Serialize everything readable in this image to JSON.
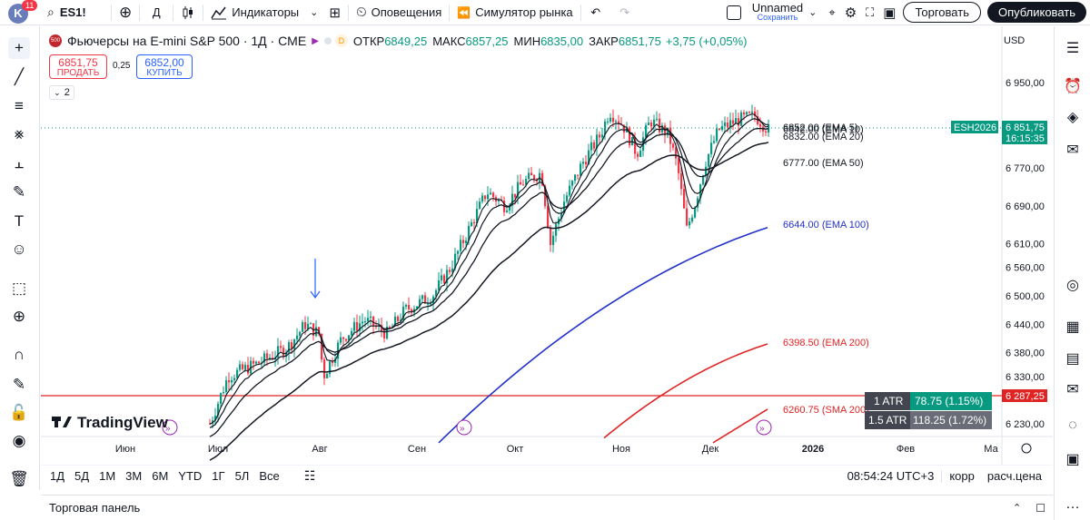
{
  "topbar": {
    "avatar_letter": "K",
    "notifications": "11",
    "symbol": "ES1!",
    "interval": "Д",
    "indicators": "Индикаторы",
    "alerts": "Оповещения",
    "replay": "Симулятор рынка",
    "layout_name": "Unnamed",
    "layout_status": "Сохранить",
    "trade_btn": "Торговать",
    "publish_btn": "Опубликовать"
  },
  "legend": {
    "badge": "500",
    "title": "Фьючерсы на E-mini S&P 500 · 1Д · CME",
    "d_badge": "D",
    "open_label": "ОТКР",
    "open": "6849,25",
    "high_label": "МАКС",
    "high": "6857,25",
    "low_label": "МИН",
    "low": "6835,00",
    "close_label": "ЗАКР",
    "close": "6851,75",
    "change": "+3,75 (+0,05%)",
    "sell_price": "6851,75",
    "sell_label": "ПРОДАТЬ",
    "spread": "0,25",
    "buy_price": "6852,00",
    "buy_label": "КУПИТЬ",
    "collapse_count": "2"
  },
  "currency": "USD",
  "logo_text": "TradingView",
  "price_scale": {
    "labels": [
      "6 950,00",
      "6 770,00",
      "6 690,00",
      "6 610,00",
      "6 560,00",
      "6 500,00",
      "6 440,00",
      "6 380,00",
      "6 330,00",
      "6 230,00"
    ],
    "last_price": "6 851,75",
    "countdown": "16:15:35",
    "contract": "ESH2026",
    "line_price": "6 287,25"
  },
  "time_axis": [
    "Июн",
    "Июл",
    "Авг",
    "Сен",
    "Окт",
    "Ноя",
    "Дек",
    "2026",
    "Фев",
    "Ма"
  ],
  "indicator_labels": {
    "ema5": "6852.00 (EMA 5)",
    "ema10": "6842.00 (EMA 10)",
    "ema20": "6832.00 (EMA 20)",
    "ema50": "6777.00 (EMA 50)",
    "ema100": "6644.00 (EMA 100)",
    "ema200": "6398.50 (EMA 200)",
    "sma200": "6260.75 (SMA 200)"
  },
  "atr": {
    "row1_label": "1 ATR",
    "row1_value": "78.75 (1.15%)",
    "row2_label": "1.5 ATR",
    "row2_value": "118.25 (1.72%)"
  },
  "bottombar": {
    "ranges": [
      "1Д",
      "5Д",
      "1М",
      "3М",
      "6М",
      "YTD",
      "1Г",
      "5Л",
      "Все"
    ],
    "time": "08:54:24 UTC+3",
    "corr": "корр",
    "calc": "расч.цена"
  },
  "panel_title": "Торговая панель",
  "colors": {
    "up": "#089981",
    "down": "#f23645",
    "ema100": "#2131c9",
    "ema200": "#e02424",
    "accent": "#2962ff"
  },
  "chart_data": {
    "type": "candlestick",
    "symbol": "ES1!",
    "period": "1Д",
    "last": 6851.75,
    "horizontal_line": 6287.25,
    "ema_last": {
      "EMA 5": 6852.0,
      "EMA 10": 6842.0,
      "EMA 20": 6832.0,
      "EMA 50": 6777.0,
      "EMA 100": 6644.0,
      "EMA 200": 6398.5,
      "SMA 200": 6260.75
    }
  }
}
